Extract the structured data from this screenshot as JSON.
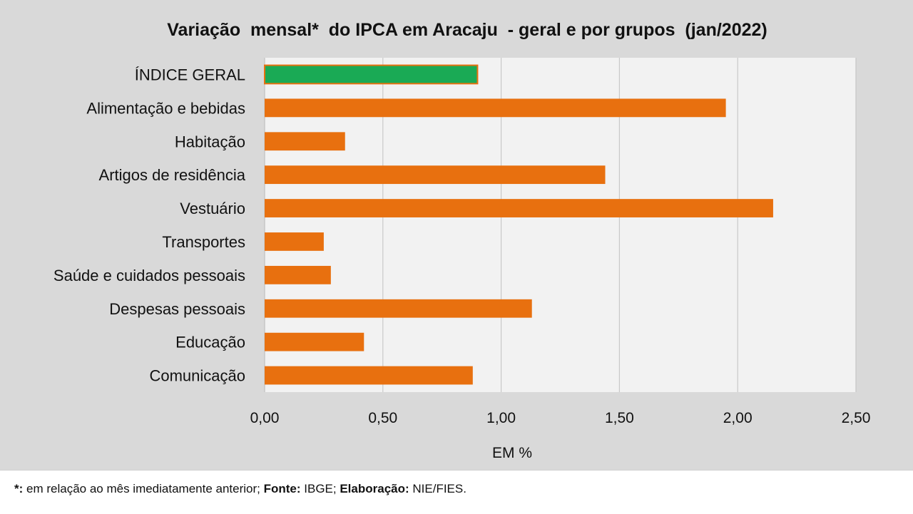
{
  "chart_data": {
    "type": "bar",
    "orientation": "horizontal",
    "title": "Variação  mensal*  do IPCA em Aracaju  - geral e por grupos  (jan/2022)",
    "xlabel": "EM %",
    "ylabel": "",
    "xlim": [
      0,
      2.5
    ],
    "xticks": [
      0,
      0.5,
      1.0,
      1.5,
      2.0,
      2.5
    ],
    "xtick_labels": [
      "0,00",
      "0,50",
      "1,00",
      "1,50",
      "2,00",
      "2,50"
    ],
    "grid": true,
    "legend": "none",
    "categories": [
      "ÍNDICE GERAL",
      "Alimentação e bebidas",
      "Habitação",
      "Artigos de residência",
      "Vestuário",
      "Transportes",
      "Saúde e cuidados pessoais",
      "Despesas pessoais",
      "Educação",
      "Comunicação"
    ],
    "values": [
      0.9,
      1.95,
      0.34,
      1.44,
      2.15,
      0.25,
      0.28,
      1.13,
      0.42,
      0.88
    ],
    "colors": [
      "#1aaa55",
      "#e8700f",
      "#e8700f",
      "#e8700f",
      "#e8700f",
      "#e8700f",
      "#e8700f",
      "#e8700f",
      "#e8700f",
      "#e8700f"
    ]
  },
  "footnote": {
    "mark": "*:",
    "text1": " em relação ao mês imediatamente  anterior; ",
    "source_label": "Fonte:",
    "source": " IBGE; ",
    "credit_label": "Elaboração:",
    "credit": " NIE/FIES."
  }
}
